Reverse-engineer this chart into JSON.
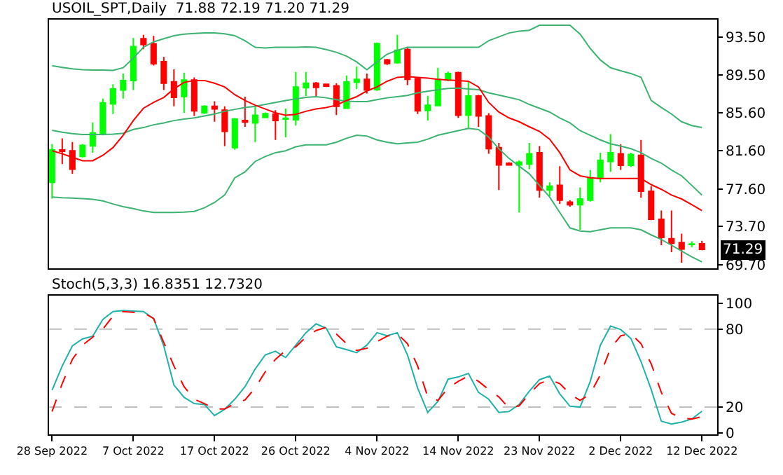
{
  "chart_data": [
    {
      "type": "candlestick",
      "title": "USOIL_SPT,Daily  71.88 72.19 71.20 71.29",
      "tick_labels": "y",
      "grid": false,
      "categories": [
        null,
        null,
        null,
        null,
        null,
        null,
        null,
        null,
        null,
        null,
        null,
        null,
        null,
        null,
        null,
        null,
        null,
        null,
        null,
        null,
        null,
        null,
        null,
        null,
        null,
        null,
        null,
        null,
        null,
        null,
        null,
        null,
        null,
        null,
        null,
        null,
        null,
        null,
        null,
        null,
        null,
        null,
        null,
        null,
        null,
        null,
        null,
        null,
        null,
        null,
        null,
        null,
        null,
        null,
        null,
        null,
        null,
        null,
        null,
        null,
        null,
        null,
        null,
        null,
        null
      ],
      "ylim": [
        69.3,
        95.3
      ],
      "yticks": [
        {
          "value": 69.7,
          "label": "69.70"
        },
        {
          "value": 73.7,
          "label": "73.70"
        },
        {
          "value": 77.6,
          "label": "77.60"
        },
        {
          "value": 81.6,
          "label": "81.60"
        },
        {
          "value": 85.6,
          "label": "85.60"
        },
        {
          "value": 89.5,
          "label": "89.50"
        },
        {
          "value": 93.5,
          "label": "93.50"
        }
      ],
      "ohlc": [
        [
          78.3,
          82.3,
          76.6,
          81.7
        ],
        [
          81.69,
          82.9,
          80.2,
          81.53
        ],
        [
          81.6,
          82.5,
          79.2,
          79.67
        ],
        [
          81.0,
          82.3,
          80.9,
          82.17
        ],
        [
          82.1,
          84.55,
          81.4,
          83.46
        ],
        [
          83.4,
          87.05,
          83.2,
          86.6
        ],
        [
          86.5,
          88.54,
          85.44,
          88.06
        ],
        [
          87.94,
          89.67,
          87.05,
          88.94
        ],
        [
          88.94,
          93.38,
          87.94,
          92.49
        ],
        [
          93.3,
          93.7,
          92.2,
          92.7
        ],
        [
          92.77,
          93.6,
          90.5,
          90.68
        ],
        [
          90.9,
          91.4,
          87.94,
          88.66
        ],
        [
          88.8,
          90.1,
          86.24,
          87.17
        ],
        [
          87.25,
          89.75,
          85.56,
          88.98
        ],
        [
          88.98,
          89.27,
          85.23,
          85.76
        ],
        [
          85.56,
          86.36,
          85.44,
          86.24
        ],
        [
          86.24,
          86.77,
          84.63,
          85.96
        ],
        [
          85.84,
          86.24,
          82.09,
          83.62
        ],
        [
          81.93,
          85.03,
          81.7,
          84.91
        ],
        [
          84.75,
          87.25,
          84.1,
          84.59
        ],
        [
          84.5,
          86.24,
          82.5,
          85.3
        ],
        [
          85.07,
          85.6,
          85.03,
          85.47
        ],
        [
          85.44,
          85.84,
          82.73,
          84.75
        ],
        [
          84.9,
          86.0,
          83.0,
          85.0
        ],
        [
          84.83,
          89.83,
          84.23,
          88.26
        ],
        [
          88.18,
          89.83,
          87.33,
          88.66
        ],
        [
          88.66,
          88.78,
          87.17,
          88.22
        ],
        [
          88.54,
          88.6,
          88.26,
          88.34
        ],
        [
          88.38,
          88.66,
          85.32,
          86.24
        ],
        [
          86.04,
          89.47,
          85.96,
          88.78
        ],
        [
          88.74,
          90.4,
          88.05,
          89.06
        ],
        [
          89.06,
          89.67,
          87.57,
          87.94
        ],
        [
          87.98,
          92.9,
          87.86,
          92.8
        ],
        [
          91.1,
          91.2,
          90.56,
          90.7
        ],
        [
          90.8,
          93.7,
          90.68,
          92.1
        ],
        [
          92.17,
          92.4,
          88.46,
          89.06
        ],
        [
          89.14,
          89.27,
          85.44,
          85.76
        ],
        [
          85.8,
          87.33,
          84.75,
          86.36
        ],
        [
          86.32,
          90.27,
          86.24,
          89.06
        ],
        [
          88.98,
          89.87,
          88.86,
          89.67
        ],
        [
          89.75,
          89.87,
          85.03,
          85.3
        ],
        [
          85.3,
          88.86,
          83.94,
          87.33
        ],
        [
          87.33,
          87.45,
          84.1,
          85.23
        ],
        [
          85.23,
          85.52,
          81.28,
          81.81
        ],
        [
          81.93,
          82.41,
          77.49,
          80.11
        ],
        [
          80.3,
          80.4,
          80.07,
          80.11
        ],
        [
          80.11,
          80.6,
          75.15,
          80.4
        ],
        [
          80.2,
          82.41,
          79.67,
          81.28
        ],
        [
          81.4,
          82.09,
          76.69,
          77.49
        ],
        [
          77.49,
          78.3,
          76.85,
          77.9
        ],
        [
          77.98,
          79.99,
          76.04,
          76.44
        ],
        [
          76.24,
          76.44,
          75.76,
          75.96
        ],
        [
          75.96,
          77.77,
          73.34,
          76.56
        ],
        [
          76.44,
          79.59,
          76.28,
          78.78
        ],
        [
          78.7,
          81.4,
          78.3,
          80.6
        ],
        [
          80.48,
          83.34,
          79.39,
          81.4
        ],
        [
          81.28,
          82.29,
          79.59,
          80.07
        ],
        [
          80.07,
          81.4,
          79.91,
          81.2
        ],
        [
          81.12,
          82.73,
          76.69,
          77.37
        ],
        [
          77.37,
          77.9,
          74.35,
          74.43
        ],
        [
          74.43,
          75.35,
          71.73,
          72.53
        ],
        [
          72.41,
          75.35,
          71.0,
          71.93
        ],
        [
          72.01,
          72.94,
          69.9,
          71.33
        ],
        [
          71.8,
          72.13,
          71.53,
          71.85
        ],
        [
          71.88,
          72.19,
          71.2,
          71.29
        ]
      ],
      "colors": [
        "#00ff00",
        "#ff0000",
        "#ff0000",
        "#00ff00",
        "#00ff00",
        "#00ff00",
        "#00ff00",
        "#00ff00",
        "#00ff00",
        "#ff0000",
        "#ff0000",
        "#ff0000",
        "#ff0000",
        "#00ff00",
        "#ff0000",
        "#00ff00",
        "#ff0000",
        "#ff0000",
        "#00ff00",
        "#ff0000",
        "#00ff00",
        "#00ff00",
        "#ff0000",
        "#00ff00",
        "#00ff00",
        "#00ff00",
        "#ff0000",
        "#ff0000",
        "#ff0000",
        "#00ff00",
        "#00ff00",
        "#ff0000",
        "#00ff00",
        "#ff0000",
        "#00ff00",
        "#ff0000",
        "#ff0000",
        "#00ff00",
        "#00ff00",
        "#00ff00",
        "#ff0000",
        "#00ff00",
        "#ff0000",
        "#ff0000",
        "#ff0000",
        "#ff0000",
        "#00ff00",
        "#00ff00",
        "#ff0000",
        "#00ff00",
        "#ff0000",
        "#ff0000",
        "#00ff00",
        "#00ff00",
        "#00ff00",
        "#00ff00",
        "#ff0000",
        "#00ff00",
        "#ff0000",
        "#ff0000",
        "#ff0000",
        "#ff0000",
        "#ff0000",
        "#00ff00",
        "#ff0000"
      ],
      "series": [
        {
          "type": "line",
          "color": "#3cb371",
          "values": [
            90.48,
            90.31,
            90.15,
            90.07,
            90.03,
            90.03,
            89.99,
            90.27,
            91.28,
            92.41,
            92.98,
            93.3,
            93.62,
            93.78,
            93.86,
            93.9,
            93.9,
            93.82,
            93.62,
            93.1,
            92.41,
            92.33,
            92.41,
            92.41,
            92.41,
            92.45,
            92.41,
            92.17,
            91.89,
            91.48,
            90.88,
            90.07,
            90.88,
            91.69,
            92.09,
            92.41,
            92.41,
            92.41,
            92.41,
            92.41,
            92.41,
            92.41,
            92.41,
            93.1,
            93.5,
            93.9,
            94.1,
            94.19,
            94.71,
            94.71,
            94.71,
            94.71,
            93.78,
            92.29,
            91.08,
            90.27,
            89.95,
            89.67,
            89.27,
            86.85,
            86.12,
            85.44,
            84.63,
            84.23,
            84.02
          ]
        },
        {
          "type": "line",
          "color": "#3cb371",
          "values": [
            83.74,
            83.54,
            83.38,
            83.3,
            83.3,
            83.3,
            83.34,
            83.42,
            83.82,
            84.02,
            84.31,
            84.51,
            84.75,
            84.91,
            85.03,
            85.23,
            85.44,
            85.72,
            85.92,
            86.12,
            86.24,
            86.44,
            86.65,
            86.85,
            87.01,
            87.17,
            87.25,
            87.13,
            86.93,
            86.77,
            86.73,
            86.73,
            86.93,
            87.13,
            87.25,
            87.37,
            87.65,
            87.81,
            87.98,
            88.1,
            88.14,
            88.06,
            87.98,
            87.65,
            87.41,
            87.17,
            86.93,
            86.44,
            86.04,
            85.64,
            85.03,
            84.51,
            83.7,
            83.22,
            82.73,
            82.33,
            82.09,
            81.81,
            81.4,
            80.8,
            80.31,
            79.59,
            78.98,
            77.98,
            76.97
          ]
        },
        {
          "type": "line",
          "color": "#3cb371",
          "values": [
            76.77,
            76.69,
            76.65,
            76.6,
            76.52,
            76.36,
            76.04,
            75.76,
            75.56,
            75.31,
            75.15,
            75.15,
            75.15,
            75.19,
            75.27,
            75.64,
            76.2,
            76.97,
            78.78,
            79.39,
            80.48,
            81.0,
            81.4,
            81.6,
            82.01,
            82.21,
            82.21,
            82.21,
            82.49,
            82.9,
            83.22,
            83.14,
            82.73,
            82.49,
            82.33,
            82.41,
            82.49,
            82.81,
            83.22,
            83.46,
            83.7,
            83.94,
            83.82,
            83.02,
            81.81,
            80.8,
            79.99,
            79.19,
            77.98,
            76.77,
            75.15,
            73.54,
            73.22,
            73.14,
            73.34,
            73.54,
            73.54,
            73.54,
            73.34,
            72.81,
            72.33,
            71.73,
            71.12,
            70.52,
            69.99
          ]
        },
        {
          "type": "line",
          "color": "#ff0000",
          "values": [
            81.6,
            81.28,
            80.92,
            80.56,
            80.56,
            81.12,
            81.93,
            83.22,
            84.75,
            86.04,
            86.65,
            87.17,
            88.06,
            88.74,
            88.94,
            88.94,
            88.66,
            88.26,
            87.45,
            86.85,
            86.36,
            85.96,
            85.56,
            85.31,
            85.4,
            85.72,
            85.96,
            86.12,
            86.36,
            86.85,
            87.25,
            87.85,
            88.26,
            88.86,
            89.27,
            89.35,
            89.27,
            89.19,
            89.06,
            88.98,
            88.94,
            88.86,
            88.26,
            86.65,
            85.64,
            85.03,
            84.63,
            84.1,
            83.62,
            82.81,
            81.4,
            79.59,
            78.98,
            78.78,
            78.7,
            78.7,
            78.7,
            78.7,
            78.7,
            78.06,
            77.57,
            76.97,
            76.56,
            75.96,
            75.35
          ]
        }
      ],
      "annotations": [
        {
          "text": "71.29",
          "y": 71.29
        }
      ]
    },
    {
      "type": "line",
      "title": "Stoch(5,3,3) 16.8351 12.7320",
      "grid": false,
      "marker": "none",
      "categories": [
        "28 Sep 2022",
        null,
        null,
        null,
        null,
        null,
        null,
        null,
        "7 Oct 2022",
        null,
        null,
        null,
        null,
        null,
        null,
        null,
        "17 Oct 2022",
        null,
        null,
        null,
        null,
        null,
        null,
        null,
        "26 Oct 2022",
        null,
        null,
        null,
        null,
        null,
        null,
        null,
        "4 Nov 2022",
        null,
        null,
        null,
        null,
        null,
        null,
        null,
        "14 Nov 2022",
        null,
        null,
        null,
        null,
        null,
        null,
        null,
        "23 Nov 2022",
        null,
        null,
        null,
        null,
        null,
        null,
        null,
        "2 Dec 2022",
        null,
        null,
        null,
        null,
        null,
        null,
        null,
        "12 Dec 2022"
      ],
      "ylim": [
        -1,
        106
      ],
      "yticks": [
        0,
        20,
        80,
        100
      ],
      "ref_lines": [
        {
          "axis": "y",
          "value": 20,
          "color": "#c0c0c0",
          "line_style": "dashed"
        },
        {
          "axis": "y",
          "value": 80,
          "color": "#c0c0c0",
          "line_style": "dashed"
        }
      ],
      "series": [
        {
          "color": "#20b2aa",
          "line_style": "solid",
          "values": [
            33.0,
            51.7,
            67.1,
            72.5,
            74.6,
            87.5,
            93.6,
            94.3,
            94.0,
            93.6,
            88.2,
            67.1,
            37.0,
            27.5,
            22.7,
            22.0,
            13.5,
            18.3,
            26.1,
            35.7,
            49.3,
            60.2,
            63.0,
            58.2,
            67.7,
            77.3,
            84.1,
            80.7,
            66.4,
            64.3,
            61.9,
            67.7,
            77.3,
            74.9,
            77.3,
            60.2,
            34.7,
            15.9,
            24.4,
            41.5,
            43.2,
            45.9,
            31.3,
            26.1,
            15.9,
            16.6,
            22.0,
            32.3,
            41.1,
            43.9,
            30.2,
            20.7,
            20.0,
            39.8,
            67.7,
            82.4,
            79.7,
            72.8,
            55.1,
            33.6,
            9.1,
            7.0,
            8.4,
            10.8,
            16.8
          ]
        },
        {
          "color": "#ff0000",
          "line_style": "dashed",
          "values": [
            16.6,
            38.1,
            56.8,
            67.7,
            73.9,
            80.0,
            90.2,
            93.6,
            93.0,
            92.6,
            88.2,
            69.8,
            51.7,
            35.7,
            26.1,
            22.7,
            18.6,
            18.6,
            22.7,
            25.5,
            34.7,
            47.3,
            56.8,
            63.6,
            66.4,
            73.9,
            79.0,
            81.4,
            76.3,
            68.8,
            63.6,
            65.3,
            70.5,
            74.6,
            76.6,
            68.8,
            51.7,
            27.8,
            25.1,
            34.7,
            39.8,
            43.9,
            39.8,
            33.6,
            27.8,
            19.3,
            21.0,
            30.2,
            38.1,
            41.1,
            38.1,
            30.2,
            25.1,
            30.2,
            44.9,
            65.3,
            74.9,
            76.6,
            68.8,
            53.4,
            31.3,
            15.2,
            11.5,
            10.8,
            12.7
          ]
        }
      ]
    }
  ]
}
